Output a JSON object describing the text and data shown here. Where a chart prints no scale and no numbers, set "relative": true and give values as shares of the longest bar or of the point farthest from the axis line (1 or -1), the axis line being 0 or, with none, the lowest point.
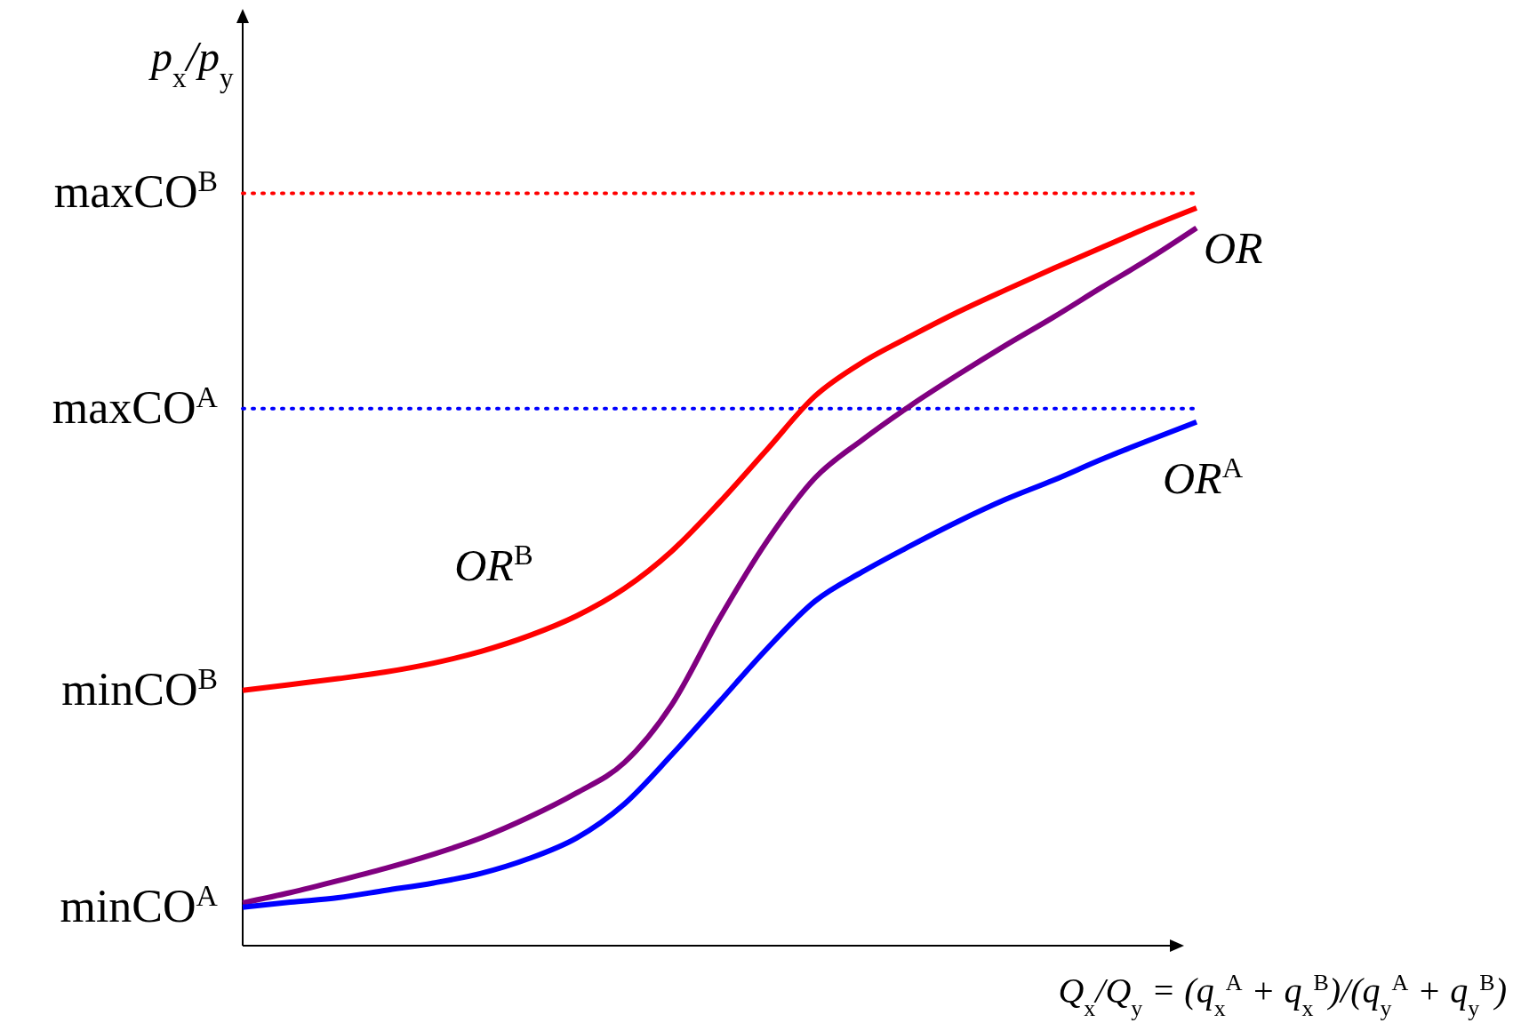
{
  "chart_data": {
    "type": "line",
    "relative": true,
    "xlabel": "Q$_{x}$/Q$_{y}$ = (q$_{x}$$^{A}$ + q$_{x}$$^{B}$)/(q$_{y}$$^{A}$ + q$_{y}$$^{B}$)",
    "ylabel": "p$_{x}$/p$_{y}$",
    "categories": [
      null,
      null,
      null,
      null,
      null,
      null,
      null,
      null,
      null,
      null,
      null,
      null,
      null,
      null,
      null,
      null,
      null,
      null,
      null,
      null,
      null
    ],
    "series": [
      {
        "name": "OR$^{B}$",
        "color": "#ff0000",
        "values": [
          0.346,
          0.354,
          0.362,
          0.371,
          0.383,
          0.399,
          0.42,
          0.447,
          0.484,
          0.535,
          0.601,
          0.673,
          0.745,
          0.791,
          0.826,
          0.859,
          0.889,
          0.918,
          0.946,
          0.974,
          1
        ]
      },
      {
        "name": "OR",
        "color": "#800080",
        "values": [
          0.058,
          0.072,
          0.088,
          0.105,
          0.124,
          0.146,
          0.174,
          0.207,
          0.248,
          0.327,
          0.444,
          0.549,
          0.634,
          0.686,
          0.732,
          0.774,
          0.814,
          0.852,
          0.892,
          0.931,
          0.973
        ]
      },
      {
        "name": "OR$^{A}$",
        "color": "#0000ff",
        "values": [
          0.052,
          0.059,
          0.065,
          0.075,
          0.085,
          0.098,
          0.118,
          0.146,
          0.192,
          0.259,
          0.331,
          0.403,
          0.467,
          0.507,
          0.542,
          0.575,
          0.605,
          0.631,
          0.659,
          0.685,
          0.71
        ]
      }
    ],
    "ref_lines": [
      {
        "axis": "y",
        "value": 1.02,
        "label": "maxCO$^{B}$",
        "color": "#ff0000",
        "line_style": "dotted"
      },
      {
        "axis": "y",
        "value": 0.728,
        "label": "maxCO$^{A}$",
        "color": "#0000ff",
        "line_style": "dotted"
      }
    ],
    "annotations": [
      "minCO$^{B}$",
      "minCO$^{A}$"
    ],
    "legend": false,
    "marker": "none",
    "line_style": "solid"
  }
}
